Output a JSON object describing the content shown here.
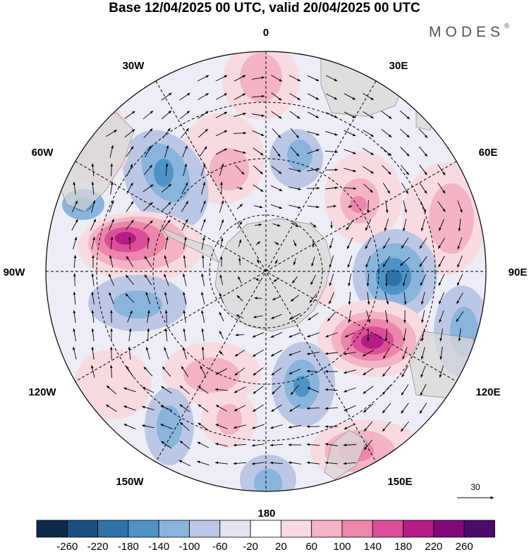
{
  "title": "Base 12/04/2025 00 UTC, valid 20/04/2025 00 UTC",
  "brand": "MODES",
  "brand_mark": "®",
  "map": {
    "projection": "south polar stereographic",
    "longitude_labels": {
      "lon_0": "0",
      "lon_30e": "30E",
      "lon_60e": "60E",
      "lon_90e": "90E",
      "lon_120e": "120E",
      "lon_150e": "150E",
      "lon_180": "180",
      "lon_150w": "150W",
      "lon_120w": "120W",
      "lon_90w": "90W",
      "lon_60w": "60W",
      "lon_30w": "30W"
    },
    "land_color": "#e8e8e8",
    "grid_style": "dashed",
    "vector_reference": {
      "value": "30"
    }
  },
  "colorbar": {
    "ticks": [
      "-260",
      "-220",
      "-180",
      "-140",
      "-100",
      "-60",
      "-20",
      "20",
      "60",
      "100",
      "140",
      "180",
      "220",
      "260"
    ],
    "colors": [
      "#0d2a4a",
      "#18507f",
      "#2e72a8",
      "#4f93c6",
      "#89b4dc",
      "#bcc7e6",
      "#e4e4f1",
      "#ffffff",
      "#f8dbe0",
      "#f4b4c4",
      "#ec86ac",
      "#dc4f98",
      "#b41c86",
      "#82097a",
      "#4c0a6b"
    ]
  }
}
